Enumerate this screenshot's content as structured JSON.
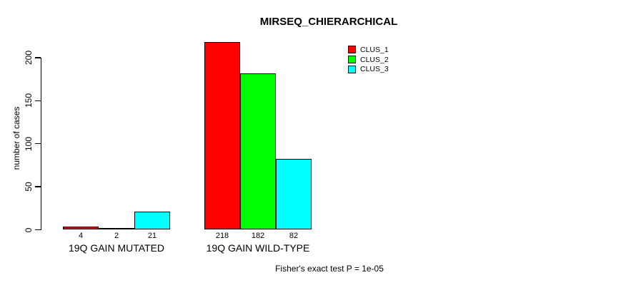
{
  "page": {
    "background_color": "#ffffff",
    "foreground_color": "#000000"
  },
  "chart_data": {
    "type": "bar",
    "title": "MIRSEQ_CHIERARCHICAL",
    "ylabel": "number of cases",
    "xlabel": "",
    "categories": [
      "19Q GAIN MUTATED",
      "19Q GAIN WILD-TYPE"
    ],
    "series": [
      {
        "name": "CLUS_1",
        "color": "#ff0000",
        "values": [
          4,
          218
        ]
      },
      {
        "name": "CLUS_2",
        "color": "#00ff00",
        "values": [
          2,
          182
        ]
      },
      {
        "name": "CLUS_3",
        "color": "#00ffff",
        "values": [
          21,
          82
        ]
      }
    ],
    "yticks": [
      0,
      50,
      100,
      150,
      200
    ],
    "ylim": [
      0,
      218
    ],
    "grid": false,
    "legend_position": "top-right",
    "bar_border_color": "#000000",
    "value_labels_shown": true
  },
  "footer": {
    "note": "Fisher's exact test P = 1e-05"
  }
}
